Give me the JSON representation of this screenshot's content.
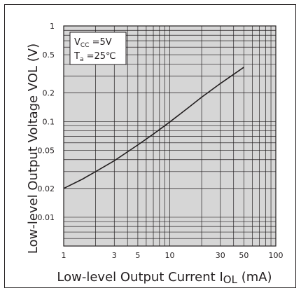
{
  "chart_data": {
    "type": "line",
    "xscale": "log",
    "yscale": "log",
    "xlim": [
      1,
      100
    ],
    "ylim": [
      0.005,
      1
    ],
    "xticks": [
      1,
      3,
      5,
      10,
      30,
      50,
      100
    ],
    "xtick_labels": [
      "1",
      "3",
      "5",
      "10",
      "30",
      "50",
      "100"
    ],
    "yticks": [
      0.01,
      0.02,
      0.05,
      0.1,
      0.2,
      0.5,
      1
    ],
    "ytick_labels": [
      "0.01",
      "0.02",
      "0.05",
      "0.1",
      "0.2",
      "0.5",
      "1"
    ],
    "xlabel": "Low-level Output Current",
    "xlabel_symbol": "I",
    "xlabel_subscript": "OL",
    "xlabel_unit": "(mA)",
    "ylabel": "Low-level Output Voltage",
    "ylabel_symbol": "VOL (V)",
    "grid": true,
    "legend": {
      "placement": "top-left",
      "lines": [
        {
          "main": "V",
          "sub": "CC",
          "rest": " =5V"
        },
        {
          "main": "T",
          "sub": "a",
          "rest": " =25℃"
        }
      ]
    },
    "series": [
      {
        "x": [
          1,
          1.5,
          2,
          3,
          5,
          7,
          10,
          15,
          20,
          30,
          50
        ],
        "y": [
          0.02,
          0.025,
          0.03,
          0.039,
          0.057,
          0.074,
          0.099,
          0.14,
          0.18,
          0.25,
          0.37
        ]
      }
    ]
  },
  "colors": {
    "plot_background": "#d6d6d6",
    "grid": "#231f20",
    "line": "#231f20",
    "text": "#231f20"
  }
}
